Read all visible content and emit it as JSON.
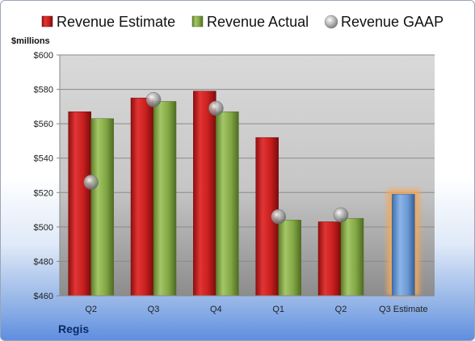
{
  "chart_data": {
    "type": "bar",
    "company": "Regis",
    "ylabel": "$millions",
    "ylim": [
      460,
      600
    ],
    "ytick_step": 20,
    "categories": [
      "Q2",
      "Q3",
      "Q4",
      "Q1",
      "Q2",
      "Q3 Estimate"
    ],
    "series": [
      {
        "name": "Revenue Estimate",
        "mark": "bar",
        "color": "#d42a2a",
        "values": [
          567,
          575,
          579,
          552,
          503,
          null
        ]
      },
      {
        "name": "Revenue Actual",
        "mark": "bar",
        "color": "#8cb04a",
        "values": [
          563,
          573,
          567,
          504,
          505,
          null
        ]
      },
      {
        "name": "Revenue GAAP",
        "mark": "marker",
        "color": "#c8c8c8",
        "values": [
          526,
          574,
          569,
          506,
          507,
          null
        ]
      },
      {
        "name": "Q3 Estimate",
        "mark": "bar",
        "color": "#6f9fd6",
        "highlight": "#f2a85a",
        "values": [
          null,
          null,
          null,
          null,
          null,
          519
        ]
      }
    ],
    "legend_position": "top",
    "grid": true
  }
}
